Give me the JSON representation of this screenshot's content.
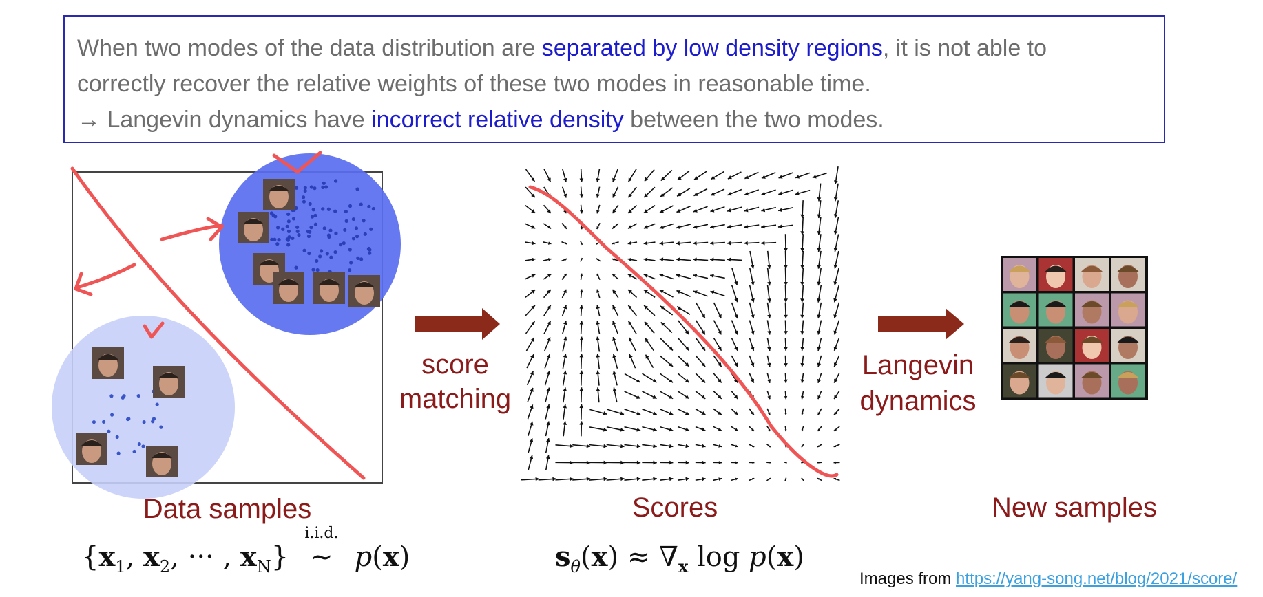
{
  "callout": {
    "line1_a": "When two modes of the data distribution are ",
    "line1_hl": "separated by low density regions",
    "line1_b": ", it is not able to",
    "line2": "correctly recover the relative weights of these two modes in reasonable time.",
    "line3_a": "→ Langevin dynamics have ",
    "line3_hl": "incorrect relative density",
    "line3_b": " between the two modes."
  },
  "labels": {
    "score_matching_1": "score",
    "score_matching_2": "matching",
    "langevin_1": "Langevin",
    "langevin_2": "dynamics",
    "data_samples": "Data samples",
    "scores": "Scores",
    "new_samples": "New samples"
  },
  "formulas": {
    "data": "{x₁, x₂, ··· , x_N} ~ p(x)",
    "iid": "i.i.d.",
    "scores": "s_θ(x) ≈ ∇ₓ log p(x)"
  },
  "credit": {
    "prefix": "Images from ",
    "link": "https://yang-song.net/blog/2021/score/"
  },
  "colors": {
    "accent_dark_red": "#8b1a1a",
    "highlight_blue": "#1c1ccc",
    "annotation_red": "#f05555",
    "mode_dense": "#5a6ef0",
    "mode_sparse": "#c7cff8"
  }
}
